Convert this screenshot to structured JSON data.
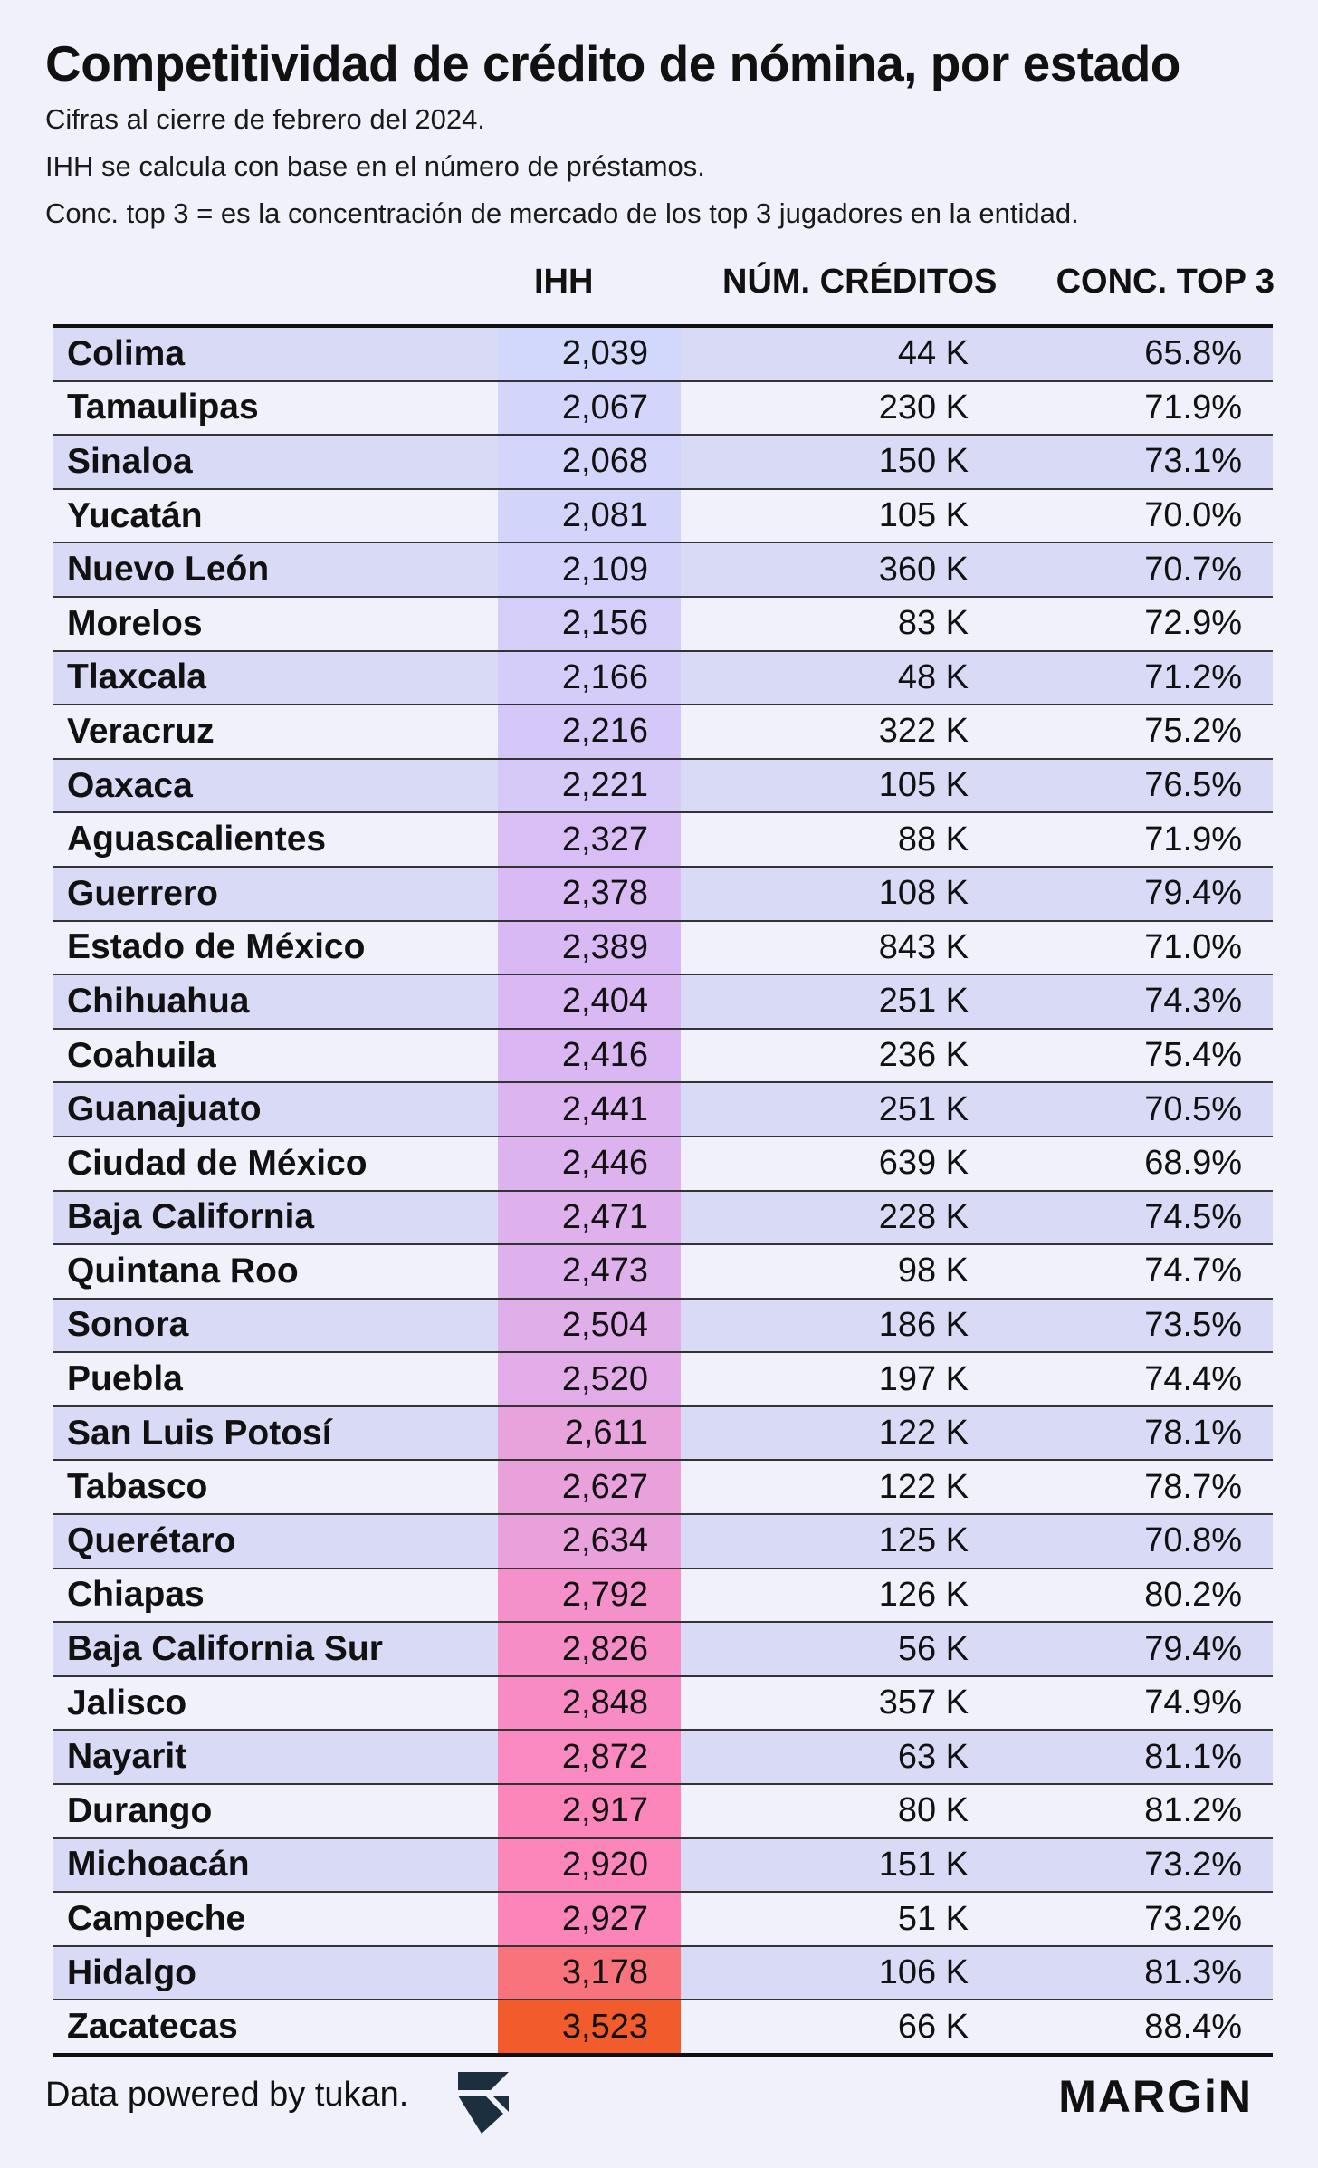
{
  "title": "Competitividad de crédito de nómina, por estado",
  "subtitles": [
    "Cifras al cierre de febrero del 2024.",
    "IHH se calcula con base en el número de préstamos.",
    "Conc. top 3 = es la concentración de mercado de los top 3 jugadores en la entidad."
  ],
  "footer": {
    "text": "Data powered by tukan.",
    "logo_icon": "tukan-logo-icon",
    "brand": "MARGiN"
  },
  "colors": {
    "background": "#f1f1fc",
    "row_band": "#d9dbf6",
    "ihh_low": "#d2d8fb",
    "ihh_mid": "#d9b8f4",
    "ihh_high": "#fc86be",
    "ihh_peak": "#f25b2b"
  },
  "chart_data": {
    "type": "table",
    "columns": [
      "IHH",
      "NÚM. CRÉDITOS",
      "CONC. TOP 3"
    ],
    "rows": [
      {
        "state": "Colima",
        "ihh": 2039,
        "ihh_label": "2,039",
        "creditos": "44 K",
        "conc": "65.8%"
      },
      {
        "state": "Tamaulipas",
        "ihh": 2067,
        "ihh_label": "2,067",
        "creditos": "230 K",
        "conc": "71.9%"
      },
      {
        "state": "Sinaloa",
        "ihh": 2068,
        "ihh_label": "2,068",
        "creditos": "150 K",
        "conc": "73.1%"
      },
      {
        "state": "Yucatán",
        "ihh": 2081,
        "ihh_label": "2,081",
        "creditos": "105 K",
        "conc": "70.0%"
      },
      {
        "state": "Nuevo León",
        "ihh": 2109,
        "ihh_label": "2,109",
        "creditos": "360 K",
        "conc": "70.7%"
      },
      {
        "state": "Morelos",
        "ihh": 2156,
        "ihh_label": "2,156",
        "creditos": "83 K",
        "conc": "72.9%"
      },
      {
        "state": "Tlaxcala",
        "ihh": 2166,
        "ihh_label": "2,166",
        "creditos": "48 K",
        "conc": "71.2%"
      },
      {
        "state": "Veracruz",
        "ihh": 2216,
        "ihh_label": "2,216",
        "creditos": "322 K",
        "conc": "75.2%"
      },
      {
        "state": "Oaxaca",
        "ihh": 2221,
        "ihh_label": "2,221",
        "creditos": "105 K",
        "conc": "76.5%"
      },
      {
        "state": "Aguascalientes",
        "ihh": 2327,
        "ihh_label": "2,327",
        "creditos": "88 K",
        "conc": "71.9%"
      },
      {
        "state": "Guerrero",
        "ihh": 2378,
        "ihh_label": "2,378",
        "creditos": "108 K",
        "conc": "79.4%"
      },
      {
        "state": "Estado de México",
        "ihh": 2389,
        "ihh_label": "2,389",
        "creditos": "843 K",
        "conc": "71.0%"
      },
      {
        "state": "Chihuahua",
        "ihh": 2404,
        "ihh_label": "2,404",
        "creditos": "251 K",
        "conc": "74.3%"
      },
      {
        "state": "Coahuila",
        "ihh": 2416,
        "ihh_label": "2,416",
        "creditos": "236 K",
        "conc": "75.4%"
      },
      {
        "state": "Guanajuato",
        "ihh": 2441,
        "ihh_label": "2,441",
        "creditos": "251 K",
        "conc": "70.5%"
      },
      {
        "state": "Ciudad de México",
        "ihh": 2446,
        "ihh_label": "2,446",
        "creditos": "639 K",
        "conc": "68.9%"
      },
      {
        "state": "Baja California",
        "ihh": 2471,
        "ihh_label": "2,471",
        "creditos": "228 K",
        "conc": "74.5%"
      },
      {
        "state": "Quintana Roo",
        "ihh": 2473,
        "ihh_label": "2,473",
        "creditos": "98 K",
        "conc": "74.7%"
      },
      {
        "state": "Sonora",
        "ihh": 2504,
        "ihh_label": "2,504",
        "creditos": "186 K",
        "conc": "73.5%"
      },
      {
        "state": "Puebla",
        "ihh": 2520,
        "ihh_label": "2,520",
        "creditos": "197 K",
        "conc": "74.4%"
      },
      {
        "state": "San Luis Potosí",
        "ihh": 2611,
        "ihh_label": "2,611",
        "creditos": "122 K",
        "conc": "78.1%"
      },
      {
        "state": "Tabasco",
        "ihh": 2627,
        "ihh_label": "2,627",
        "creditos": "122 K",
        "conc": "78.7%"
      },
      {
        "state": "Querétaro",
        "ihh": 2634,
        "ihh_label": "2,634",
        "creditos": "125 K",
        "conc": "70.8%"
      },
      {
        "state": "Chiapas",
        "ihh": 2792,
        "ihh_label": "2,792",
        "creditos": "126 K",
        "conc": "80.2%"
      },
      {
        "state": "Baja California Sur",
        "ihh": 2826,
        "ihh_label": "2,826",
        "creditos": "56 K",
        "conc": "79.4%"
      },
      {
        "state": "Jalisco",
        "ihh": 2848,
        "ihh_label": "2,848",
        "creditos": "357 K",
        "conc": "74.9%"
      },
      {
        "state": "Nayarit",
        "ihh": 2872,
        "ihh_label": "2,872",
        "creditos": "63 K",
        "conc": "81.1%"
      },
      {
        "state": "Durango",
        "ihh": 2917,
        "ihh_label": "2,917",
        "creditos": "80 K",
        "conc": "81.2%"
      },
      {
        "state": "Michoacán",
        "ihh": 2920,
        "ihh_label": "2,920",
        "creditos": "151 K",
        "conc": "73.2%"
      },
      {
        "state": "Campeche",
        "ihh": 2927,
        "ihh_label": "2,927",
        "creditos": "51 K",
        "conc": "73.2%"
      },
      {
        "state": "Hidalgo",
        "ihh": 3178,
        "ihh_label": "3,178",
        "creditos": "106 K",
        "conc": "81.3%"
      },
      {
        "state": "Zacatecas",
        "ihh": 3523,
        "ihh_label": "3,523",
        "creditos": "66 K",
        "conc": "88.4%"
      }
    ]
  }
}
